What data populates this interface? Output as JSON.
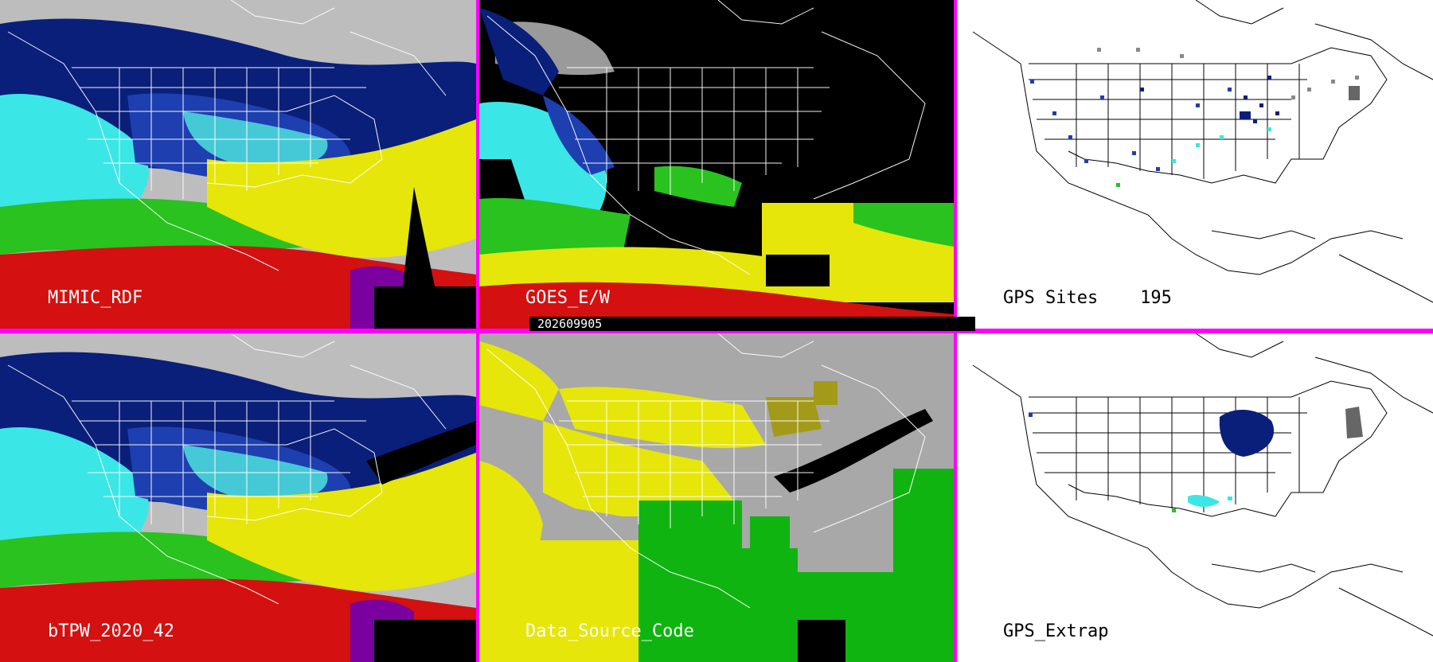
{
  "panels": [
    {
      "label": "MIMIC_RDF",
      "theme": "sat"
    },
    {
      "label": "GOES_E/W",
      "theme": "goes"
    },
    {
      "label": "GPS Sites    195",
      "theme": "gps"
    },
    {
      "label": "bTPW_2020_42",
      "theme": "sat"
    },
    {
      "label": "Data_Source_Code",
      "theme": "dsc"
    },
    {
      "label": "GPS_Extrap",
      "theme": "gpsx"
    }
  ],
  "timestamp": "202609905",
  "colors": {
    "separator": "#ff00ff",
    "label_on_dark": "#ffffff",
    "label_on_light": "#000000",
    "ocean_land_dark": "#000000",
    "water_white": "#ffffff"
  }
}
